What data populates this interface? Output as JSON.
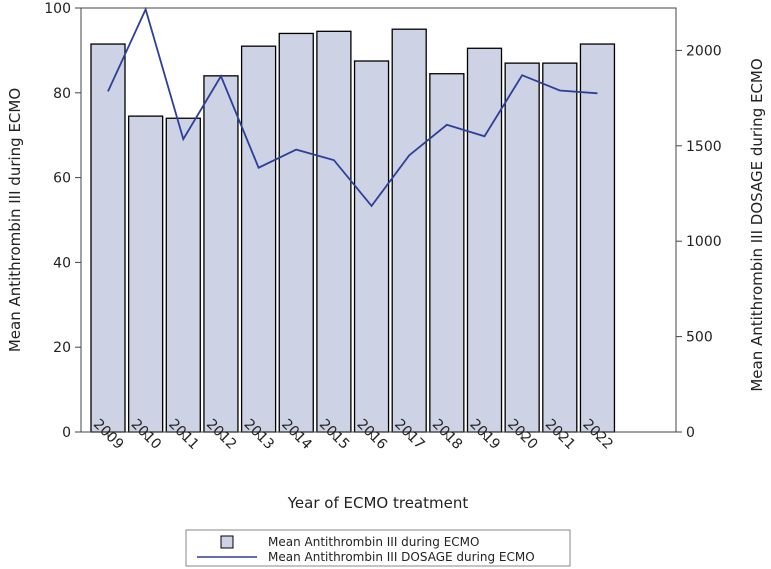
{
  "chart_data": {
    "type": "bar+line",
    "categories": [
      "2009",
      "2010",
      "2011",
      "2012",
      "2013",
      "2014",
      "2015",
      "2016",
      "2017",
      "2018",
      "2019",
      "2020",
      "2021",
      "2022"
    ],
    "series": [
      {
        "name": "Mean Antithrombin III during ECMO",
        "type": "bar",
        "axis": "left",
        "values": [
          91.5,
          74.5,
          74,
          84,
          91,
          94,
          94.5,
          87.5,
          95,
          84.5,
          90.5,
          87,
          87,
          91.5
        ]
      },
      {
        "name": "Mean Antithrombin III DOSAGE during ECMO",
        "type": "line",
        "axis": "right",
        "values": [
          1785,
          2215,
          1535,
          1865,
          1385,
          1480,
          1425,
          1185,
          1450,
          1610,
          1550,
          1870,
          1790,
          1775
        ]
      }
    ],
    "xlabel": "Year of ECMO treatment",
    "ylabel_left": "Mean Antithrombin III during ECMO",
    "ylabel_right": "Mean Antithrombin III DOSAGE during ECMO",
    "ylim_left": [
      0,
      100
    ],
    "ylim_right": [
      0,
      2222.2
    ],
    "yticks_left": [
      0,
      20,
      40,
      60,
      80,
      100
    ],
    "yticks_right": [
      0,
      500,
      1000,
      1500,
      2000
    ],
    "legend_position": "bottom",
    "colors": {
      "bar_fill": "#cdd2e4",
      "bar_stroke": "#000000",
      "line": "#2e3f9a",
      "axis": "#444444"
    }
  }
}
